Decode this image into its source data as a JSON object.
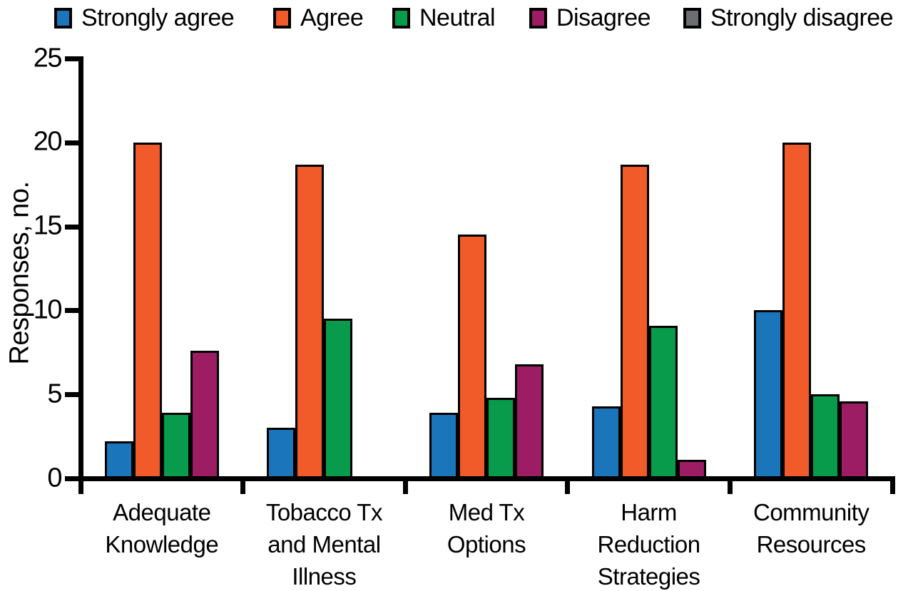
{
  "chart_data": {
    "type": "bar",
    "title": "",
    "xlabel": "",
    "ylabel": "Responses, no.",
    "ylim": [
      0,
      25
    ],
    "yticks": [
      0,
      5,
      10,
      15,
      20,
      25
    ],
    "grid": false,
    "legend_position": "top",
    "categories": [
      "Adequate Knowledge",
      "Tobacco Tx and Mental Illness",
      "Med Tx Options",
      "Harm Reduction Strategies",
      "Community Resources"
    ],
    "category_lines": [
      [
        "Adequate",
        "Knowledge"
      ],
      [
        "Tobacco Tx",
        "and Mental",
        "Illness"
      ],
      [
        "Med Tx",
        "Options"
      ],
      [
        "Harm",
        "Reduction",
        "Strategies"
      ],
      [
        "Community",
        "Resources"
      ]
    ],
    "series": [
      {
        "name": "Strongly agree",
        "color": "#1B75BB",
        "values": [
          2.2,
          3.0,
          3.9,
          4.3,
          10.0
        ]
      },
      {
        "name": "Agree",
        "color": "#F15B2A",
        "values": [
          20.0,
          18.7,
          14.5,
          18.7,
          20.0
        ]
      },
      {
        "name": "Neutral",
        "color": "#089B4C",
        "values": [
          3.9,
          9.5,
          4.8,
          9.1,
          5.0
        ]
      },
      {
        "name": "Disagree",
        "color": "#9C1D63",
        "values": [
          7.6,
          0,
          6.8,
          1.1,
          4.6
        ]
      },
      {
        "name": "Strongly disagree",
        "color": "#6D6E71",
        "values": [
          0,
          0,
          0,
          0,
          0
        ]
      }
    ],
    "axis_color": "#000000",
    "bar_outline_color": "#000000"
  }
}
